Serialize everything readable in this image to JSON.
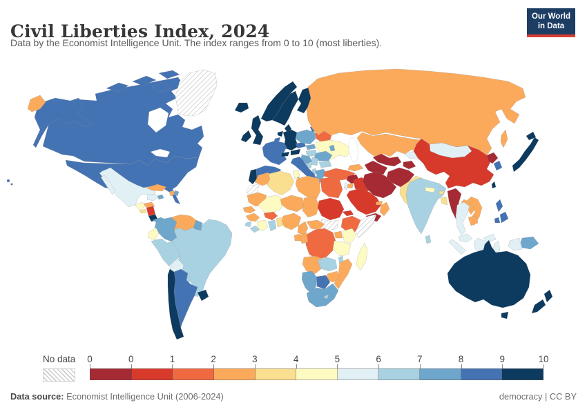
{
  "header": {
    "title": "Civil Liberties Index, 2024",
    "subtitle": "Data by the Economist Intelligence Unit. The index ranges from 0 to 10 (most liberties).",
    "logo": {
      "line1": "Our World",
      "line2": "in Data"
    }
  },
  "legend": {
    "no_data_label": "No data",
    "ticks": [
      "0",
      "0",
      "1",
      "2",
      "3",
      "4",
      "5",
      "6",
      "7",
      "8",
      "9",
      "10"
    ]
  },
  "footer": {
    "source_label": "Data source:",
    "source_text": " Economist Intelligence Unit (2006-2024)",
    "right_text": "democracy | CC BY"
  },
  "palette": {
    "bins": [
      "#A62A33",
      "#D7392B",
      "#EF6A41",
      "#FBAA5C",
      "#FBDF90",
      "#FDFBC2",
      "#E1F0F5",
      "#A8D2E2",
      "#6FA6CB",
      "#4473B4",
      "#0D3A5F"
    ],
    "no_data_fill": "hatch",
    "logo_bg": "#1d3d63",
    "logo_red": "#dc3d33"
  },
  "chart_data": {
    "type": "choropleth",
    "title": "Civil Liberties Index, 2024",
    "unit_range": [
      0,
      10
    ],
    "legend_bins": [
      [
        0,
        0
      ],
      [
        0,
        1
      ],
      [
        1,
        2
      ],
      [
        2,
        3
      ],
      [
        3,
        4
      ],
      [
        4,
        5
      ],
      [
        5,
        6
      ],
      [
        6,
        7
      ],
      [
        7,
        8
      ],
      [
        8,
        9
      ],
      [
        9,
        10
      ]
    ],
    "entities": [
      {
        "name": "United States",
        "value": 8.2
      },
      {
        "name": "Canada",
        "value": 8.8
      },
      {
        "name": "Greenland",
        "value": null
      },
      {
        "name": "Mexico",
        "value": 5.6
      },
      {
        "name": "Guatemala",
        "value": 4.4
      },
      {
        "name": "Honduras",
        "value": 2.6
      },
      {
        "name": "El Salvador",
        "value": 3.2
      },
      {
        "name": "Nicaragua",
        "value": 0.9
      },
      {
        "name": "Costa Rica",
        "value": 9.4
      },
      {
        "name": "Panama",
        "value": 7.6
      },
      {
        "name": "Cuba",
        "value": 2.6
      },
      {
        "name": "Jamaica",
        "value": 7.9
      },
      {
        "name": "Haiti",
        "value": 2.4
      },
      {
        "name": "Dominican Republic",
        "value": 7.1
      },
      {
        "name": "Colombia",
        "value": 7.1
      },
      {
        "name": "Venezuela",
        "value": 2.4
      },
      {
        "name": "Guyana",
        "value": 7.4
      },
      {
        "name": "Ecuador",
        "value": 4.4
      },
      {
        "name": "Peru",
        "value": 6.2
      },
      {
        "name": "Brazil",
        "value": 6.8
      },
      {
        "name": "Bolivia",
        "value": 5.3
      },
      {
        "name": "Paraguay",
        "value": 6.2
      },
      {
        "name": "Chile",
        "value": 9.1
      },
      {
        "name": "Argentina",
        "value": 8.2
      },
      {
        "name": "Uruguay",
        "value": 9.7
      },
      {
        "name": "Iceland",
        "value": 9.4
      },
      {
        "name": "Ireland",
        "value": 9.7
      },
      {
        "name": "United Kingdom",
        "value": 9.1
      },
      {
        "name": "Portugal",
        "value": 9.4
      },
      {
        "name": "Spain",
        "value": 8.8
      },
      {
        "name": "France",
        "value": 8.5
      },
      {
        "name": "Norway",
        "value": 9.7
      },
      {
        "name": "Sweden",
        "value": 9.4
      },
      {
        "name": "Finland",
        "value": 9.7
      },
      {
        "name": "Denmark",
        "value": 9.7
      },
      {
        "name": "Netherlands",
        "value": 9.1
      },
      {
        "name": "Belgium",
        "value": 8.8
      },
      {
        "name": "Germany",
        "value": 9.4
      },
      {
        "name": "Switzerland",
        "value": 9.7
      },
      {
        "name": "Austria",
        "value": 9.1
      },
      {
        "name": "Czechia",
        "value": 8.5
      },
      {
        "name": "Slovakia",
        "value": 7.9
      },
      {
        "name": "Hungary",
        "value": 6.8
      },
      {
        "name": "Poland",
        "value": 7.9
      },
      {
        "name": "Estonia",
        "value": 9.1
      },
      {
        "name": "Latvia",
        "value": 8.5
      },
      {
        "name": "Lithuania",
        "value": 8.8
      },
      {
        "name": "Belarus",
        "value": 1.2
      },
      {
        "name": "Ukraine",
        "value": 4.1
      },
      {
        "name": "Moldova",
        "value": 7.1
      },
      {
        "name": "Romania",
        "value": 7.4
      },
      {
        "name": "Bulgaria",
        "value": 6.8
      },
      {
        "name": "Serbia",
        "value": 6.2
      },
      {
        "name": "Croatia",
        "value": 7.6
      },
      {
        "name": "Bosnia and Herzegovina",
        "value": 6.5
      },
      {
        "name": "Albania",
        "value": 6.5
      },
      {
        "name": "Greece",
        "value": 7.6
      },
      {
        "name": "Italy",
        "value": 8.2
      },
      {
        "name": "Russia",
        "value": 2.1
      },
      {
        "name": "Kazakhstan",
        "value": 2.4
      },
      {
        "name": "Uzbekistan",
        "value": 0
      },
      {
        "name": "Turkmenistan",
        "value": 0
      },
      {
        "name": "Kyrgyzstan",
        "value": 5.3
      },
      {
        "name": "Tajikistan",
        "value": 0
      },
      {
        "name": "Afghanistan",
        "value": 0
      },
      {
        "name": "Pakistan",
        "value": 3.8
      },
      {
        "name": "Iran",
        "value": 0
      },
      {
        "name": "Iraq",
        "value": 0.9
      },
      {
        "name": "Syria",
        "value": 0
      },
      {
        "name": "Turkey",
        "value": 1.8
      },
      {
        "name": "Azerbaijan",
        "value": 2.4
      },
      {
        "name": "Jordan",
        "value": 2.6
      },
      {
        "name": "Israel",
        "value": 5.6
      },
      {
        "name": "Saudi Arabia",
        "value": 0.9
      },
      {
        "name": "Yemen",
        "value": 0
      },
      {
        "name": "Oman",
        "value": 2.4
      },
      {
        "name": "United Arab Emirates",
        "value": 2.1
      },
      {
        "name": "Morocco",
        "value": 2.9
      },
      {
        "name": "Western Sahara",
        "value": null
      },
      {
        "name": "Algeria",
        "value": 3.2
      },
      {
        "name": "Tunisia",
        "value": 4.4
      },
      {
        "name": "Libya",
        "value": 2.1
      },
      {
        "name": "Egypt",
        "value": 1.5
      },
      {
        "name": "Mauritania",
        "value": 2.6
      },
      {
        "name": "Mali",
        "value": 4.1
      },
      {
        "name": "Niger",
        "value": 2.1
      },
      {
        "name": "Chad",
        "value": 2.1
      },
      {
        "name": "Sudan",
        "value": 0.9
      },
      {
        "name": "Eritrea",
        "value": 0.6
      },
      {
        "name": "Ethiopia",
        "value": 1.5
      },
      {
        "name": "Somalia",
        "value": null
      },
      {
        "name": "South Sudan",
        "value": null
      },
      {
        "name": "Senegal",
        "value": 2.9
      },
      {
        "name": "Guinea",
        "value": 2.4
      },
      {
        "name": "Sierra Leone",
        "value": 6.2
      },
      {
        "name": "Liberia",
        "value": 6.5
      },
      {
        "name": "Ivory Coast",
        "value": 4.4
      },
      {
        "name": "Ghana",
        "value": 6.2
      },
      {
        "name": "Burkina Faso",
        "value": 1.8
      },
      {
        "name": "Benin",
        "value": 3.5
      },
      {
        "name": "Nigeria",
        "value": 2.9
      },
      {
        "name": "Cameroon",
        "value": 2.1
      },
      {
        "name": "Central African Republic",
        "value": 2.4
      },
      {
        "name": "Democratic Republic of Congo",
        "value": 1.5
      },
      {
        "name": "Congo",
        "value": 2.6
      },
      {
        "name": "Gabon",
        "value": 2.9
      },
      {
        "name": "Uganda",
        "value": 2.9
      },
      {
        "name": "Kenya",
        "value": 4.4
      },
      {
        "name": "Tanzania",
        "value": 4.7
      },
      {
        "name": "Angola",
        "value": 2.9
      },
      {
        "name": "Zambia",
        "value": 6.2
      },
      {
        "name": "Malawi",
        "value": 6.5
      },
      {
        "name": "Mozambique",
        "value": 2.9
      },
      {
        "name": "Zimbabwe",
        "value": 2.1
      },
      {
        "name": "Botswana",
        "value": 8.2
      },
      {
        "name": "Namibia",
        "value": 7.6
      },
      {
        "name": "South Africa",
        "value": 7.4
      },
      {
        "name": "Lesotho",
        "value": 6.2
      },
      {
        "name": "Madagascar",
        "value": 4.7
      },
      {
        "name": "India",
        "value": 6.2
      },
      {
        "name": "Nepal",
        "value": 4.4
      },
      {
        "name": "Bhutan",
        "value": 3.8
      },
      {
        "name": "Bangladesh",
        "value": 3.5
      },
      {
        "name": "Sri Lanka",
        "value": 6.2
      },
      {
        "name": "China",
        "value": 0.9
      },
      {
        "name": "Mongolia",
        "value": 5.9
      },
      {
        "name": "Taiwan",
        "value": 9.4
      },
      {
        "name": "North Korea",
        "value": 0
      },
      {
        "name": "South Korea",
        "value": 8.2
      },
      {
        "name": "Japan",
        "value": 9.1
      },
      {
        "name": "Myanmar",
        "value": 0
      },
      {
        "name": "Thailand",
        "value": 5.3
      },
      {
        "name": "Laos",
        "value": 2.1
      },
      {
        "name": "Vietnam",
        "value": 2.4
      },
      {
        "name": "Cambodia",
        "value": 2.6
      },
      {
        "name": "Malaysia",
        "value": 5.6
      },
      {
        "name": "Philippines",
        "value": 8.2
      },
      {
        "name": "Indonesia",
        "value": 5.6
      },
      {
        "name": "Papua New Guinea",
        "value": 7.1
      },
      {
        "name": "Australia",
        "value": 9.7
      },
      {
        "name": "New Zealand",
        "value": 9.7
      }
    ]
  }
}
